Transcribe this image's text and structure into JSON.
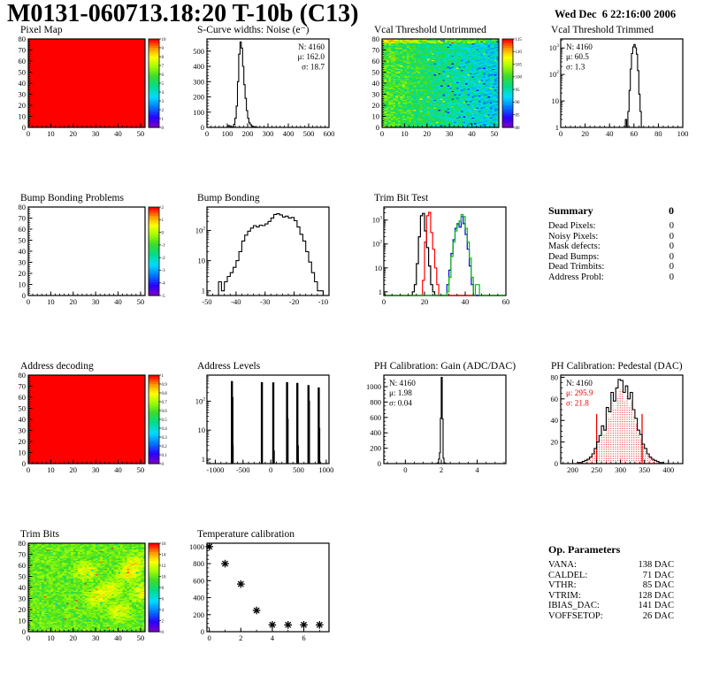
{
  "header": {
    "title": "M0131-060713.18:20 T-10b (C13)",
    "date": "Wed Dec  6 22:16:00 2006"
  },
  "summary": {
    "heading": "Summary",
    "heading_value": "0",
    "rows": [
      {
        "label": "Dead Pixels:",
        "value": "0"
      },
      {
        "label": "Noisy Pixels:",
        "value": "0"
      },
      {
        "label": "Mask defects:",
        "value": "0"
      },
      {
        "label": "Dead Bumps:",
        "value": "0"
      },
      {
        "label": "Dead Trimbits:",
        "value": "0"
      },
      {
        "label": "Address Probl:",
        "value": "0"
      }
    ]
  },
  "op_parameters": {
    "heading": "Op. Parameters",
    "rows": [
      {
        "label": "VANA:",
        "value": "138 DAC"
      },
      {
        "label": "CALDEL:",
        "value": "71 DAC"
      },
      {
        "label": "VTHR:",
        "value": "85 DAC"
      },
      {
        "label": "VTRIM:",
        "value": "128 DAC"
      },
      {
        "label": "IBIAS_DAC:",
        "value": "141 DAC"
      },
      {
        "label": "VOFFSETOP:",
        "value": "26 DAC"
      }
    ]
  },
  "chart_data": [
    {
      "id": "pixel-map",
      "title": "Pixel Map",
      "type": "heatmap",
      "x": {
        "min": 0,
        "max": 52,
        "ticks": [
          0,
          10,
          20,
          30,
          40,
          50
        ],
        "subdiv": 5
      },
      "y": {
        "min": 0,
        "max": 80,
        "ticks": [
          0,
          10,
          20,
          30,
          40,
          50,
          60,
          70,
          80
        ],
        "subdiv": 5
      },
      "heat": {
        "variant": "solid",
        "value": 10
      },
      "colorbar": {
        "vmin": 0,
        "vmax": 10,
        "labels": [
          10,
          9,
          8,
          7,
          6,
          5,
          4,
          3,
          2,
          1,
          0
        ]
      }
    },
    {
      "id": "scurve-noise",
      "title": "S-Curve widths: Noise (e⁻)",
      "type": "hist",
      "x": {
        "min": 0,
        "max": 600,
        "ticks": [
          0,
          100,
          200,
          300,
          400,
          500,
          600
        ],
        "subdiv": 5
      },
      "y": {
        "min": 0,
        "max": 580,
        "ticks": [
          0,
          100,
          200,
          300,
          400,
          500
        ],
        "subdiv": 5
      },
      "bins": {
        "start": 100,
        "width": 6.25,
        "counts": [
          8,
          12,
          4,
          0,
          6,
          20,
          60,
          140,
          300,
          480,
          560,
          520,
          400,
          280,
          190,
          110,
          60,
          30,
          18,
          10,
          6,
          3,
          2,
          1
        ]
      },
      "stats": {
        "pos": "tr",
        "lines": [
          [
            "N: 4160",
            "#000000"
          ],
          [
            "μ: 162.0",
            "#000000"
          ],
          [
            "σ: 18.7",
            "#000000"
          ]
        ]
      }
    },
    {
      "id": "vcal-threshold-untrimmed",
      "title": "Vcal Threshold Untrimmed",
      "type": "heatmap",
      "x": {
        "min": 0,
        "max": 52,
        "ticks": [
          0,
          10,
          20,
          30,
          40,
          50
        ],
        "subdiv": 5
      },
      "y": {
        "min": 0,
        "max": 80,
        "ticks": [
          0,
          10,
          20,
          30,
          40,
          50,
          60,
          70,
          80
        ],
        "subdiv": 5
      },
      "heat": {
        "variant": "untrimmed",
        "baseLeft": 101,
        "baseRight": 92,
        "noise": 8,
        "topRows": 4,
        "topBoost": 7,
        "seed": 3
      },
      "colorbar": {
        "vmin": 80,
        "vmax": 115,
        "labels": [
          115,
          110,
          105,
          100,
          95,
          90,
          85,
          80
        ]
      }
    },
    {
      "id": "vcal-threshold-trimmed",
      "title": "Vcal Threshold Trimmed",
      "type": "hist",
      "x": {
        "min": 0,
        "max": 100,
        "ticks": [
          0,
          20,
          40,
          60,
          80,
          100
        ],
        "subdiv": 5
      },
      "y": {
        "log": true,
        "min": 1,
        "max": 2200
      },
      "bins": {
        "start": 53,
        "width": 1,
        "counts": [
          2,
          0,
          4,
          25,
          160,
          620,
          1100,
          1350,
          1020,
          580,
          140,
          18,
          4
        ]
      },
      "stats": {
        "pos": "tl",
        "lines": [
          [
            "N: 4160",
            "#000000"
          ],
          [
            "μ: 60.5",
            "#000000"
          ],
          [
            "σ: 1.3",
            "#000000"
          ]
        ]
      }
    },
    {
      "id": "bump-bonding-problems",
      "title": "Bump Bonding Problems",
      "type": "heatmap",
      "x": {
        "min": 0,
        "max": 52,
        "ticks": [
          0,
          10,
          20,
          30,
          40,
          50
        ],
        "subdiv": 5
      },
      "y": {
        "min": 0,
        "max": 80,
        "ticks": [
          0,
          10,
          20,
          30,
          40,
          50,
          60,
          70,
          80
        ],
        "subdiv": 5
      },
      "heat": {
        "variant": "none"
      },
      "colorbar": {
        "vmin": -5,
        "vmax": 2,
        "labels": [
          2,
          1,
          0,
          -1,
          -2,
          -3,
          -4,
          -5
        ]
      }
    },
    {
      "id": "bump-bonding",
      "title": "Bump Bonding",
      "type": "hist",
      "x": {
        "min": -50,
        "max": -8,
        "ticks": [
          -50,
          -40,
          -30,
          -20,
          -10
        ],
        "subdiv": 5
      },
      "y": {
        "log": true,
        "min": 0.7,
        "max": 600
      },
      "bins": {
        "start": -46,
        "width": 1,
        "counts": [
          2,
          1,
          2,
          3,
          4,
          6,
          10,
          20,
          45,
          70,
          95,
          120,
          145,
          130,
          150,
          145,
          165,
          200,
          260,
          340,
          360,
          330,
          280,
          300,
          260,
          270,
          210,
          130,
          75,
          45,
          20,
          9,
          4,
          2,
          1,
          1
        ]
      }
    },
    {
      "id": "trim-bit-test",
      "title": "Trim Bit Test",
      "type": "multihist",
      "x": {
        "min": 0,
        "max": 60,
        "ticks": [
          0,
          20,
          40,
          60
        ],
        "subdiv": 5
      },
      "y": {
        "log": true,
        "min": 0.7,
        "max": 3500
      },
      "series": [
        {
          "color": "#000000",
          "start": 14,
          "width": 1,
          "counts": [
            1,
            2,
            15,
            200,
            1500,
            1900,
            350,
            70,
            12,
            2,
            1
          ]
        },
        {
          "color": "#ff0000",
          "start": 19,
          "width": 1,
          "counts": [
            3,
            120,
            1500,
            2100,
            300,
            60,
            10,
            2
          ]
        },
        {
          "color": "#0000ee",
          "start": 31,
          "width": 1,
          "counts": [
            2,
            8,
            40,
            150,
            450,
            700,
            500,
            1400,
            700,
            250,
            60,
            12,
            2
          ]
        },
        {
          "color": "#00bb00",
          "start": 31,
          "width": 1,
          "counts": [
            1,
            4,
            30,
            120,
            350,
            650,
            900,
            1700,
            1400,
            450,
            120,
            25,
            4,
            0,
            2,
            2
          ]
        }
      ]
    },
    {
      "id": "address-decoding",
      "title": "Address decoding",
      "type": "heatmap",
      "x": {
        "min": 0,
        "max": 52,
        "ticks": [
          0,
          10,
          20,
          30,
          40,
          50
        ],
        "subdiv": 5
      },
      "y": {
        "min": 0,
        "max": 80,
        "ticks": [
          0,
          10,
          20,
          30,
          40,
          50,
          60,
          70,
          80
        ],
        "subdiv": 5
      },
      "heat": {
        "variant": "solid",
        "value": 1
      },
      "colorbar": {
        "vmin": 0,
        "vmax": 1,
        "labels": [
          1,
          0.9,
          0.8,
          0.7,
          0.6,
          0.5,
          0.4,
          0.3,
          0.2,
          0.1,
          0
        ]
      }
    },
    {
      "id": "address-levels",
      "title": "Address Levels",
      "type": "spikes",
      "x": {
        "min": -1150,
        "max": 1050,
        "ticks": [
          -1000,
          -500,
          0,
          500,
          1000
        ],
        "subdiv": 5
      },
      "y": {
        "log": true,
        "min": 0.7,
        "max": 800
      },
      "spikes": [
        [
          -700,
          500
        ],
        [
          -693,
          140
        ],
        [
          -688,
          3
        ],
        [
          -160,
          460
        ],
        [
          45,
          450
        ],
        [
          53,
          2
        ],
        [
          295,
          460
        ],
        [
          302,
          25
        ],
        [
          480,
          430
        ],
        [
          488,
          3
        ],
        [
          680,
          360
        ],
        [
          688,
          105
        ],
        [
          865,
          300
        ],
        [
          873,
          12
        ]
      ]
    },
    {
      "id": "ph-calibration-gain",
      "title": "PH Calibration: Gain (ADC/DAC)",
      "type": "hist",
      "x": {
        "min": -1.2,
        "max": 5.6,
        "ticks": [
          0,
          2,
          4
        ],
        "subdiv": 4
      },
      "y": {
        "min": 0,
        "max": 1150,
        "ticks": [
          0,
          200,
          400,
          600,
          800,
          1000
        ],
        "subdiv": 4
      },
      "bins": {
        "start": 1.7,
        "width": 0.05,
        "counts": [
          1,
          2,
          10,
          60,
          140,
          590,
          1120,
          580,
          70,
          10,
          3,
          1
        ]
      },
      "stats": {
        "pos": "tl",
        "lines": [
          [
            "N: 4160",
            "#000000"
          ],
          [
            "μ: 1.98",
            "#000000"
          ],
          [
            "σ: 0.04",
            "#000000"
          ]
        ]
      }
    },
    {
      "id": "ph-calibration-pedestal",
      "title": "PH Calibration: Pedestal (DAC)",
      "type": "hist",
      "x": {
        "min": 175,
        "max": 430,
        "ticks": [
          200,
          250,
          300,
          350,
          400
        ],
        "subdiv": 5
      },
      "y": {
        "min": 0,
        "max": 82,
        "ticks": [
          0,
          20,
          40,
          60,
          80
        ],
        "subdiv": 4
      },
      "bins": {
        "start": 210,
        "width": 5,
        "counts": [
          1,
          1,
          2,
          3,
          4,
          6,
          9,
          14,
          20,
          26,
          35,
          31,
          52,
          48,
          66,
          58,
          70,
          78,
          77,
          66,
          72,
          60,
          66,
          50,
          42,
          31,
          27,
          18,
          14,
          9,
          6,
          4,
          3,
          2,
          1,
          1
        ]
      },
      "red_overlay": {
        "fill_scale": 0.88,
        "lines_x": [
          250,
          345
        ],
        "line_height": 46,
        "color": "#ee0000"
      },
      "stats": {
        "pos": "tl",
        "lines": [
          [
            "N: 4160",
            "#000000"
          ],
          [
            "μ: 295.9",
            "#ee0000"
          ],
          [
            "σ: 21.8",
            "#ee0000"
          ]
        ]
      }
    },
    {
      "id": "trim-bits",
      "title": "Trim Bits",
      "type": "heatmap",
      "x": {
        "min": 0,
        "max": 52,
        "ticks": [
          0,
          10,
          20,
          30,
          40,
          50
        ],
        "subdiv": 5
      },
      "y": {
        "min": 0,
        "max": 80,
        "ticks": [
          0,
          10,
          20,
          30,
          40,
          50,
          60,
          70,
          80
        ],
        "subdiv": 5
      },
      "heat": {
        "variant": "trimbits",
        "base": 10,
        "noise": 2.4,
        "seed": 11,
        "blobBoost": 3.2,
        "blobs": [
          [
            36,
            38
          ],
          [
            44,
            52
          ],
          [
            30,
            30
          ],
          [
            47,
            62
          ],
          [
            40,
            18
          ],
          [
            50,
            35
          ],
          [
            25,
            55
          ]
        ]
      },
      "colorbar": {
        "vmin": 0,
        "vmax": 16,
        "labels": [
          16,
          14,
          12,
          10,
          8,
          6,
          4,
          2,
          0
        ]
      }
    },
    {
      "id": "temperature-calibration",
      "title": "Temperature calibration",
      "type": "scatter",
      "x": {
        "min": -0.15,
        "max": 7.6,
        "ticks": [
          0,
          2,
          4,
          6
        ],
        "subdiv": 2
      },
      "y": {
        "min": 0,
        "max": 1040,
        "ticks": [
          0,
          200,
          400,
          600,
          800,
          1000
        ],
        "subdiv": 4
      },
      "points": [
        [
          0,
          1000
        ],
        [
          1,
          800
        ],
        [
          2,
          560
        ],
        [
          3,
          250
        ],
        [
          4,
          80
        ],
        [
          5,
          80
        ],
        [
          6,
          80
        ],
        [
          7,
          80
        ]
      ]
    }
  ]
}
